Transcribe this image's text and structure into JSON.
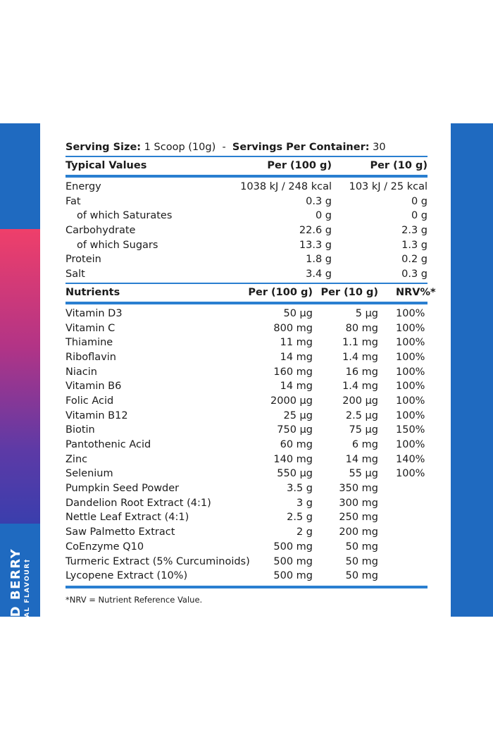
{
  "flavour": {
    "name": "MIXED BERRY",
    "sub": "NATURAL FLAVOUR†"
  },
  "serving": {
    "size_label": "Serving Size:",
    "size_value": "1 Scoop (10g)",
    "separator": "-",
    "per_container_label": "Servings Per Container:",
    "per_container_value": "30"
  },
  "typical": {
    "headers": [
      "Typical Values",
      "Per (100 g)",
      "Per (10 g)"
    ],
    "rows": [
      [
        "Energy",
        "1038 kJ / 248 kcal",
        "103 kJ / 25 kcal"
      ],
      [
        "Fat",
        "0.3 g",
        "0 g"
      ],
      [
        "of which Saturates",
        "0 g",
        "0 g"
      ],
      [
        "Carbohydrate",
        "22.6 g",
        "2.3 g"
      ],
      [
        "of which Sugars",
        "13.3 g",
        "1.3 g"
      ],
      [
        "Protein",
        "1.8 g",
        "0.2 g"
      ],
      [
        "Salt",
        "3.4 g",
        "0.3 g"
      ]
    ]
  },
  "nutrients": {
    "headers": [
      "Nutrients",
      "Per (100 g)",
      "Per (10 g)",
      "NRV%*"
    ],
    "rows": [
      [
        "Vitamin D3",
        "50 µg",
        "5 µg",
        "100%"
      ],
      [
        "Vitamin C",
        "800 mg",
        "80 mg",
        "100%"
      ],
      [
        "Thiamine",
        "11 mg",
        "1.1 mg",
        "100%"
      ],
      [
        "Riboflavin",
        "14 mg",
        "1.4 mg",
        "100%"
      ],
      [
        "Niacin",
        "160 mg",
        "16 mg",
        "100%"
      ],
      [
        "Vitamin B6",
        "14 mg",
        "1.4 mg",
        "100%"
      ],
      [
        "Folic Acid",
        "2000 µg",
        "200 µg",
        "100%"
      ],
      [
        "Vitamin B12",
        "25 µg",
        "2.5 µg",
        "100%"
      ],
      [
        "Biotin",
        "750 µg",
        "75 µg",
        "150%"
      ],
      [
        "Pantothenic Acid",
        "60 mg",
        "6 mg",
        "100%"
      ],
      [
        "Zinc",
        "140 mg",
        "14 mg",
        "140%"
      ],
      [
        "Selenium",
        "550 µg",
        "55 µg",
        "100%"
      ],
      [
        "Pumpkin Seed Powder",
        "3.5 g",
        "350 mg",
        ""
      ],
      [
        "Dandelion Root Extract (4:1)",
        "3 g",
        "300 mg",
        ""
      ],
      [
        "Nettle Leaf Extract (4:1)",
        "2.5 g",
        "250 mg",
        ""
      ],
      [
        "Saw Palmetto Extract",
        "2 g",
        "200 mg",
        ""
      ],
      [
        "CoEnzyme Q10",
        "500 mg",
        "50 mg",
        ""
      ],
      [
        "Turmeric Extract (5% Curcuminoids)",
        "500 mg",
        "50 mg",
        ""
      ],
      [
        "Lycopene Extract (10%)",
        "500 mg",
        "50 mg",
        ""
      ]
    ]
  },
  "footnote": "*NRV = Nutrient Reference Value.",
  "colors": {
    "band": "#1f6ac0",
    "rule": "#2a7fd0",
    "tab_top": "#ef3f6a",
    "tab_bottom": "#3a3ead"
  }
}
